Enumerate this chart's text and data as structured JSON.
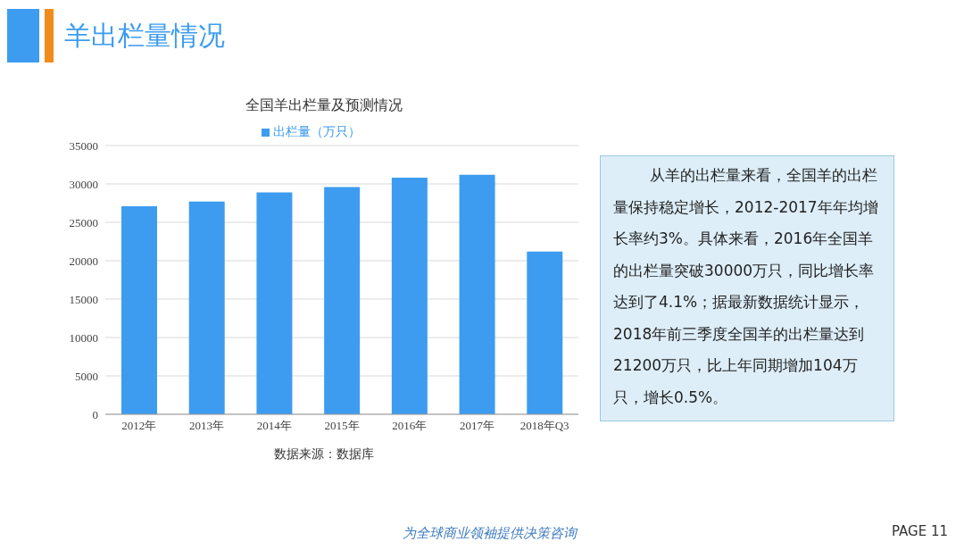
{
  "chart_data": {
    "type": "bar",
    "title": "羊出栏量情况",
    "subtitle": "全国羊出栏量及预测情况",
    "categories": [
      "2012年",
      "2013年",
      "2014年",
      "2015年",
      "2016年",
      "2017年",
      "2018年Q3"
    ],
    "series": [
      {
        "name": "出栏量（万只）",
        "color": "#3d9cf0",
        "values": [
          27100,
          27700,
          28900,
          29600,
          30800,
          31200,
          21200
        ]
      }
    ],
    "ylim": [
      0,
      35000
    ],
    "yticks": [
      0,
      5000,
      10000,
      15000,
      20000,
      25000,
      30000,
      35000
    ],
    "grid": "y",
    "legend": "top",
    "annotations": [
      "数据来源：数据库",
      "从羊的出栏量来看，全国羊的出栏量保持稳定增长，2012-2017年年均增长率约3%。具体来看，2016年全国羊的出栏量突破30000万只，同比增长率达到了4.1%；据最新数据统计显示，2018年前三季度全国羊的出栏量达到21200万只，比上年同期增加104万只，增长0.5%。",
      "为全球商业领袖提供决策咨询",
      "PAGE 11"
    ]
  }
}
